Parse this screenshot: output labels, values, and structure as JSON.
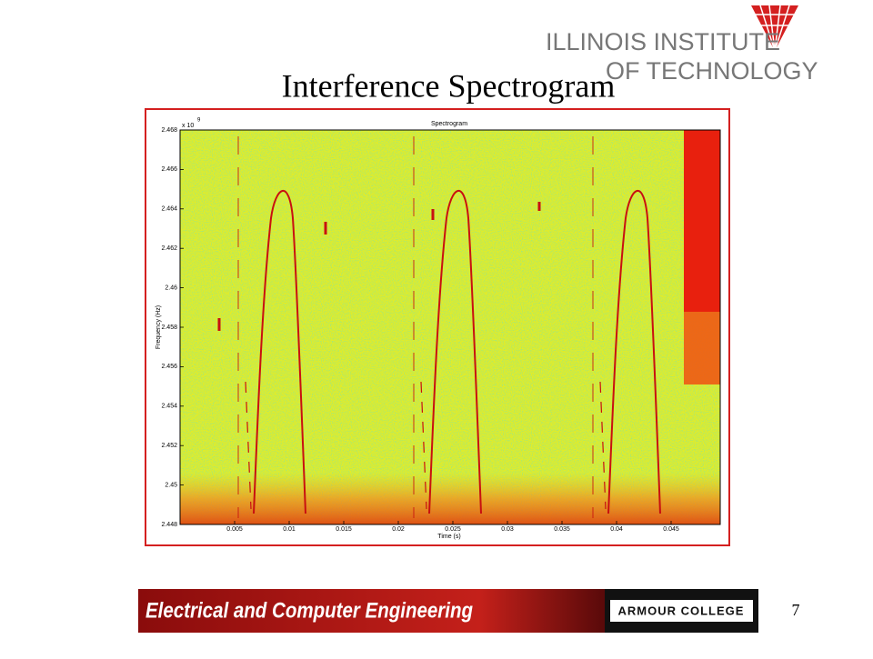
{
  "header": {
    "logo_line1": "ILLINOIS INSTITUTE",
    "logo_line2": "OF TECHNOLOGY"
  },
  "title": "Interference Spectrogram",
  "chart_data": {
    "type": "spectrogram",
    "title": "Spectrogram",
    "x_label": "Time (s)",
    "y_label": "Frequency (Hz)",
    "y_multiplier": "x 10",
    "y_multiplier_exponent": "9",
    "xlim": [
      0,
      0.0495
    ],
    "xticks": [
      0.005,
      0.01,
      0.015,
      0.02,
      0.025,
      0.03,
      0.035,
      0.04,
      0.045
    ],
    "ylim": [
      2.448,
      2.468
    ],
    "yticks": [
      2.448,
      2.45,
      2.452,
      2.454,
      2.456,
      2.458,
      2.46,
      2.462,
      2.464,
      2.466,
      2.468
    ]
  },
  "footer": {
    "department": "Electrical and Computer Engineering",
    "college": "ARMOUR COLLEGE"
  },
  "page_number": 7
}
